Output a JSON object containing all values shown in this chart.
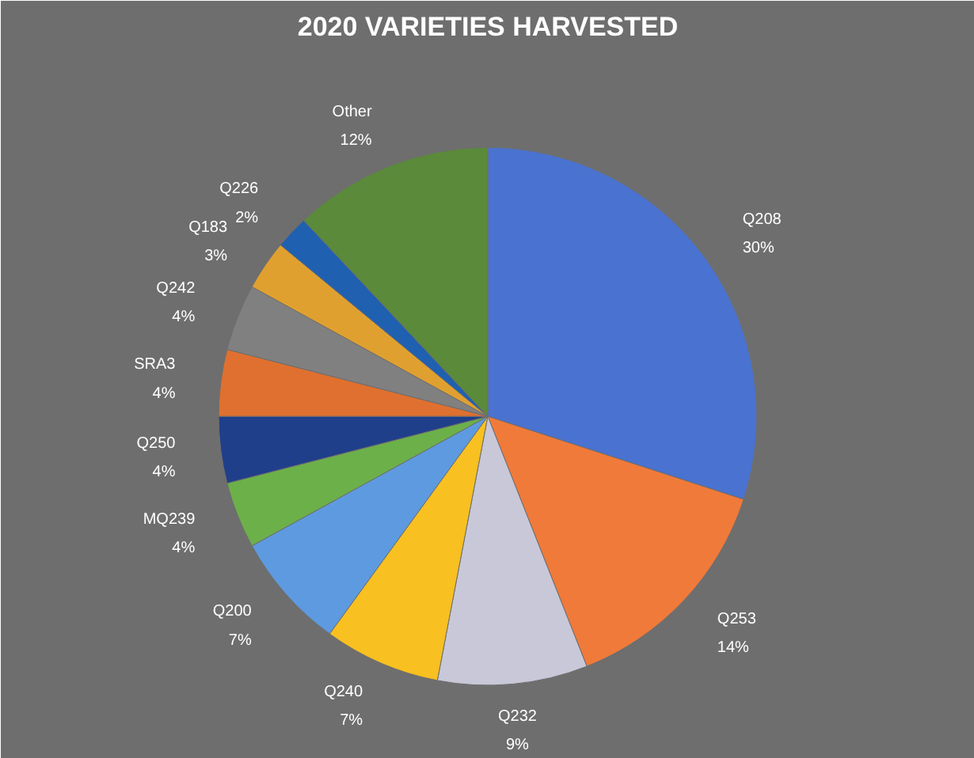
{
  "chart_data": {
    "type": "pie",
    "title": "2020 VARIETIES HARVESTED",
    "categories": [
      "Q208",
      "Q253",
      "Q232",
      "Q240",
      "Q200",
      "MQ239",
      "Q250",
      "SRA3",
      "Q242",
      "Q183",
      "Q226",
      "Other"
    ],
    "values": [
      30,
      14,
      9,
      7,
      7,
      4,
      4,
      4,
      4,
      3,
      2,
      12
    ],
    "value_labels": [
      "30%",
      "14%",
      "9%",
      "7%",
      "7%",
      "4%",
      "4%",
      "4%",
      "4%",
      "3%",
      "2%",
      "12%"
    ],
    "colors": [
      "#4a72d0",
      "#f07a3a",
      "#c8c8d8",
      "#f8c020",
      "#5e9ae0",
      "#6cb04a",
      "#1f3f8a",
      "#e0702f",
      "#808080",
      "#e0a030",
      "#2060b0",
      "#5a8a3a"
    ]
  }
}
